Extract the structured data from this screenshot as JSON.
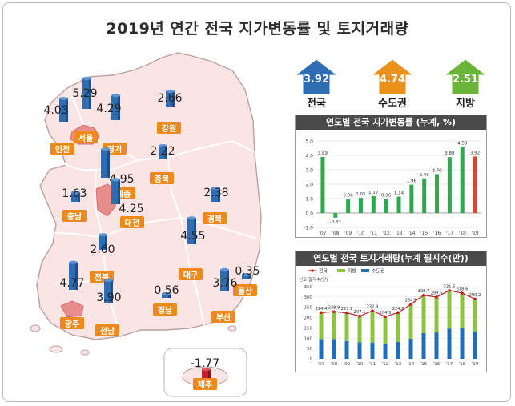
{
  "title": "2019년 연간 전국 지가변동률 및 토지거래량",
  "summary": [
    {
      "label": "전국",
      "value": "3.92",
      "color": "#2e6db4"
    },
    {
      "label": "수도권",
      "value": "4.74",
      "color": "#e8921c"
    },
    {
      "label": "지방",
      "value": "2.51",
      "color": "#6bb43a"
    }
  ],
  "regions": [
    {
      "name": "인천",
      "value": "4.03"
    },
    {
      "name": "서울",
      "value": "5.29"
    },
    {
      "name": "경기",
      "value": "4.29"
    },
    {
      "name": "강원",
      "value": "2.66"
    },
    {
      "name": "충북",
      "value": "2.22"
    },
    {
      "name": "세종",
      "value": "4.95"
    },
    {
      "name": "대전",
      "value": "4.25"
    },
    {
      "name": "충남",
      "value": "1.63"
    },
    {
      "name": "경북",
      "value": "2.38"
    },
    {
      "name": "전북",
      "value": "2.60"
    },
    {
      "name": "대구",
      "value": "4.55"
    },
    {
      "name": "울산",
      "value": "0.35"
    },
    {
      "name": "광주",
      "value": "4.77"
    },
    {
      "name": "전남",
      "value": "3.90"
    },
    {
      "name": "경남",
      "value": "0.56"
    },
    {
      "name": "부산",
      "value": "3.76"
    },
    {
      "name": "제주",
      "value": "-1.77"
    }
  ],
  "chart_data": [
    {
      "type": "bar",
      "title": "연도별 전국 지가변동률 (누계, %)",
      "categories": [
        "'07",
        "'08",
        "'09",
        "'10",
        "'11",
        "'12",
        "'13",
        "'14",
        "'15",
        "'16",
        "'17",
        "'18",
        "'19"
      ],
      "values": [
        3.89,
        -0.32,
        0.96,
        1.05,
        1.17,
        0.96,
        1.14,
        1.96,
        2.4,
        2.7,
        3.88,
        4.58,
        3.92
      ],
      "value_labels": [
        "3.89",
        "-0.32",
        "0.96",
        "1.05",
        "1.17",
        "0.96",
        "1.14",
        "1.96",
        "2.40",
        "2.70",
        "3.88",
        "4.58",
        "3.92"
      ],
      "yticks": [
        "5.0",
        "4.0",
        "3.0",
        "2.0",
        "1.0",
        "0.0",
        "-1.0"
      ],
      "ylim": [
        -1.0,
        5.0
      ],
      "bar_color": "#2fa84f",
      "highlight_color": "#e4402b"
    },
    {
      "type": "bar",
      "title": "연도별 전국 토지거래량(누계 필지수(만))",
      "ylabel": "신고 필지수(만)",
      "legend": [
        "전국",
        "지방",
        "수도권"
      ],
      "categories": [
        "'07",
        "'08",
        "'09",
        "'10",
        "'11",
        "'12",
        "'13",
        "'14",
        "'15",
        "'16",
        "'17",
        "'18",
        "'19"
      ],
      "series": [
        {
          "name": "전국",
          "values": [
            224.4,
            228.9,
            223.1,
            207.1,
            232.9,
            204.5,
            224.2,
            264.6,
            308.7,
            299.5,
            331.5,
            318.6,
            290.2
          ],
          "color": "#c0202a"
        },
        {
          "name": "지방",
          "values": [
            128,
            133,
            137,
            127,
            154,
            135,
            142,
            167,
            184,
            172,
            185,
            170,
            158
          ],
          "color": "#8cc43f"
        },
        {
          "name": "수도권",
          "values": [
            96,
            96,
            86,
            80,
            79,
            70,
            82,
            98,
            125,
            128,
            147,
            149,
            132
          ],
          "color": "#1f6fb8"
        }
      ],
      "value_labels": [
        "224.4",
        "228.9",
        "223.1",
        "207.1",
        "232.9",
        "204.5",
        "224.2",
        "264.6",
        "308.7",
        "299.5",
        "331.5",
        "318.6",
        "290.2"
      ],
      "yticks": [
        "350",
        "300",
        "250",
        "200",
        "150",
        "100",
        "50",
        "0"
      ],
      "ylim": [
        0,
        350
      ]
    }
  ]
}
